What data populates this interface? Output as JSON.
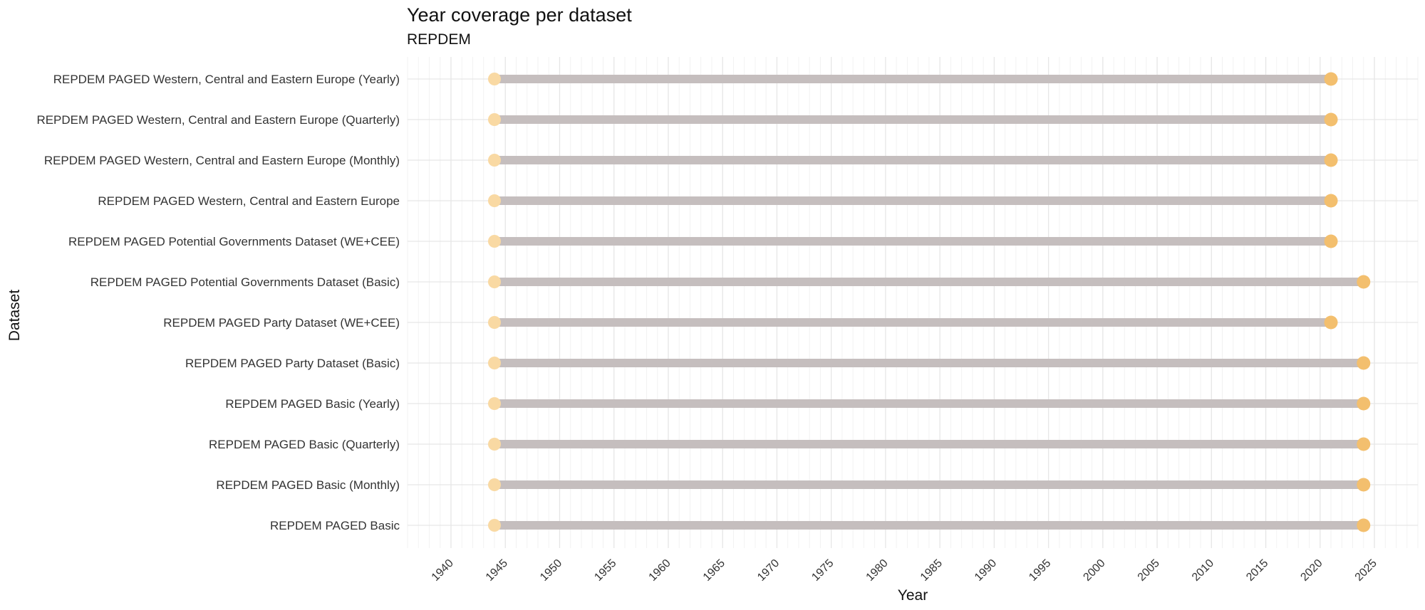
{
  "chart_data": {
    "type": "dumbbell",
    "title": "Year coverage per dataset",
    "subtitle": "REPDEM",
    "xlabel": "Year",
    "ylabel": "Dataset",
    "xlim": [
      1936,
      2029
    ],
    "xticks": [
      1940,
      1945,
      1950,
      1955,
      1960,
      1965,
      1970,
      1975,
      1980,
      1985,
      1990,
      1995,
      2000,
      2005,
      2010,
      2015,
      2020,
      2025
    ],
    "grid": true,
    "legend": "none",
    "colors": {
      "segment": "#c5bebe",
      "start": "#f9d9a3",
      "end": "#f3bf6e",
      "grid_major": "#e6e6e6",
      "grid_minor": "#f2f2f2"
    },
    "datasets": [
      {
        "name": "REPDEM PAGED Western, Central and Eastern Europe (Yearly)",
        "start": 1944,
        "end": 2021
      },
      {
        "name": "REPDEM PAGED Western, Central and Eastern Europe (Quarterly)",
        "start": 1944,
        "end": 2021
      },
      {
        "name": "REPDEM PAGED Western, Central and Eastern Europe (Monthly)",
        "start": 1944,
        "end": 2021
      },
      {
        "name": "REPDEM PAGED Western, Central and Eastern Europe",
        "start": 1944,
        "end": 2021
      },
      {
        "name": "REPDEM PAGED Potential Governments Dataset (WE+CEE)",
        "start": 1944,
        "end": 2021
      },
      {
        "name": "REPDEM PAGED Potential Governments Dataset (Basic)",
        "start": 1944,
        "end": 2024
      },
      {
        "name": "REPDEM PAGED Party Dataset (WE+CEE)",
        "start": 1944,
        "end": 2021
      },
      {
        "name": "REPDEM PAGED Party Dataset (Basic)",
        "start": 1944,
        "end": 2024
      },
      {
        "name": "REPDEM PAGED Basic (Yearly)",
        "start": 1944,
        "end": 2024
      },
      {
        "name": "REPDEM PAGED Basic (Quarterly)",
        "start": 1944,
        "end": 2024
      },
      {
        "name": "REPDEM PAGED Basic (Monthly)",
        "start": 1944,
        "end": 2024
      },
      {
        "name": "REPDEM PAGED Basic",
        "start": 1944,
        "end": 2024
      }
    ]
  }
}
